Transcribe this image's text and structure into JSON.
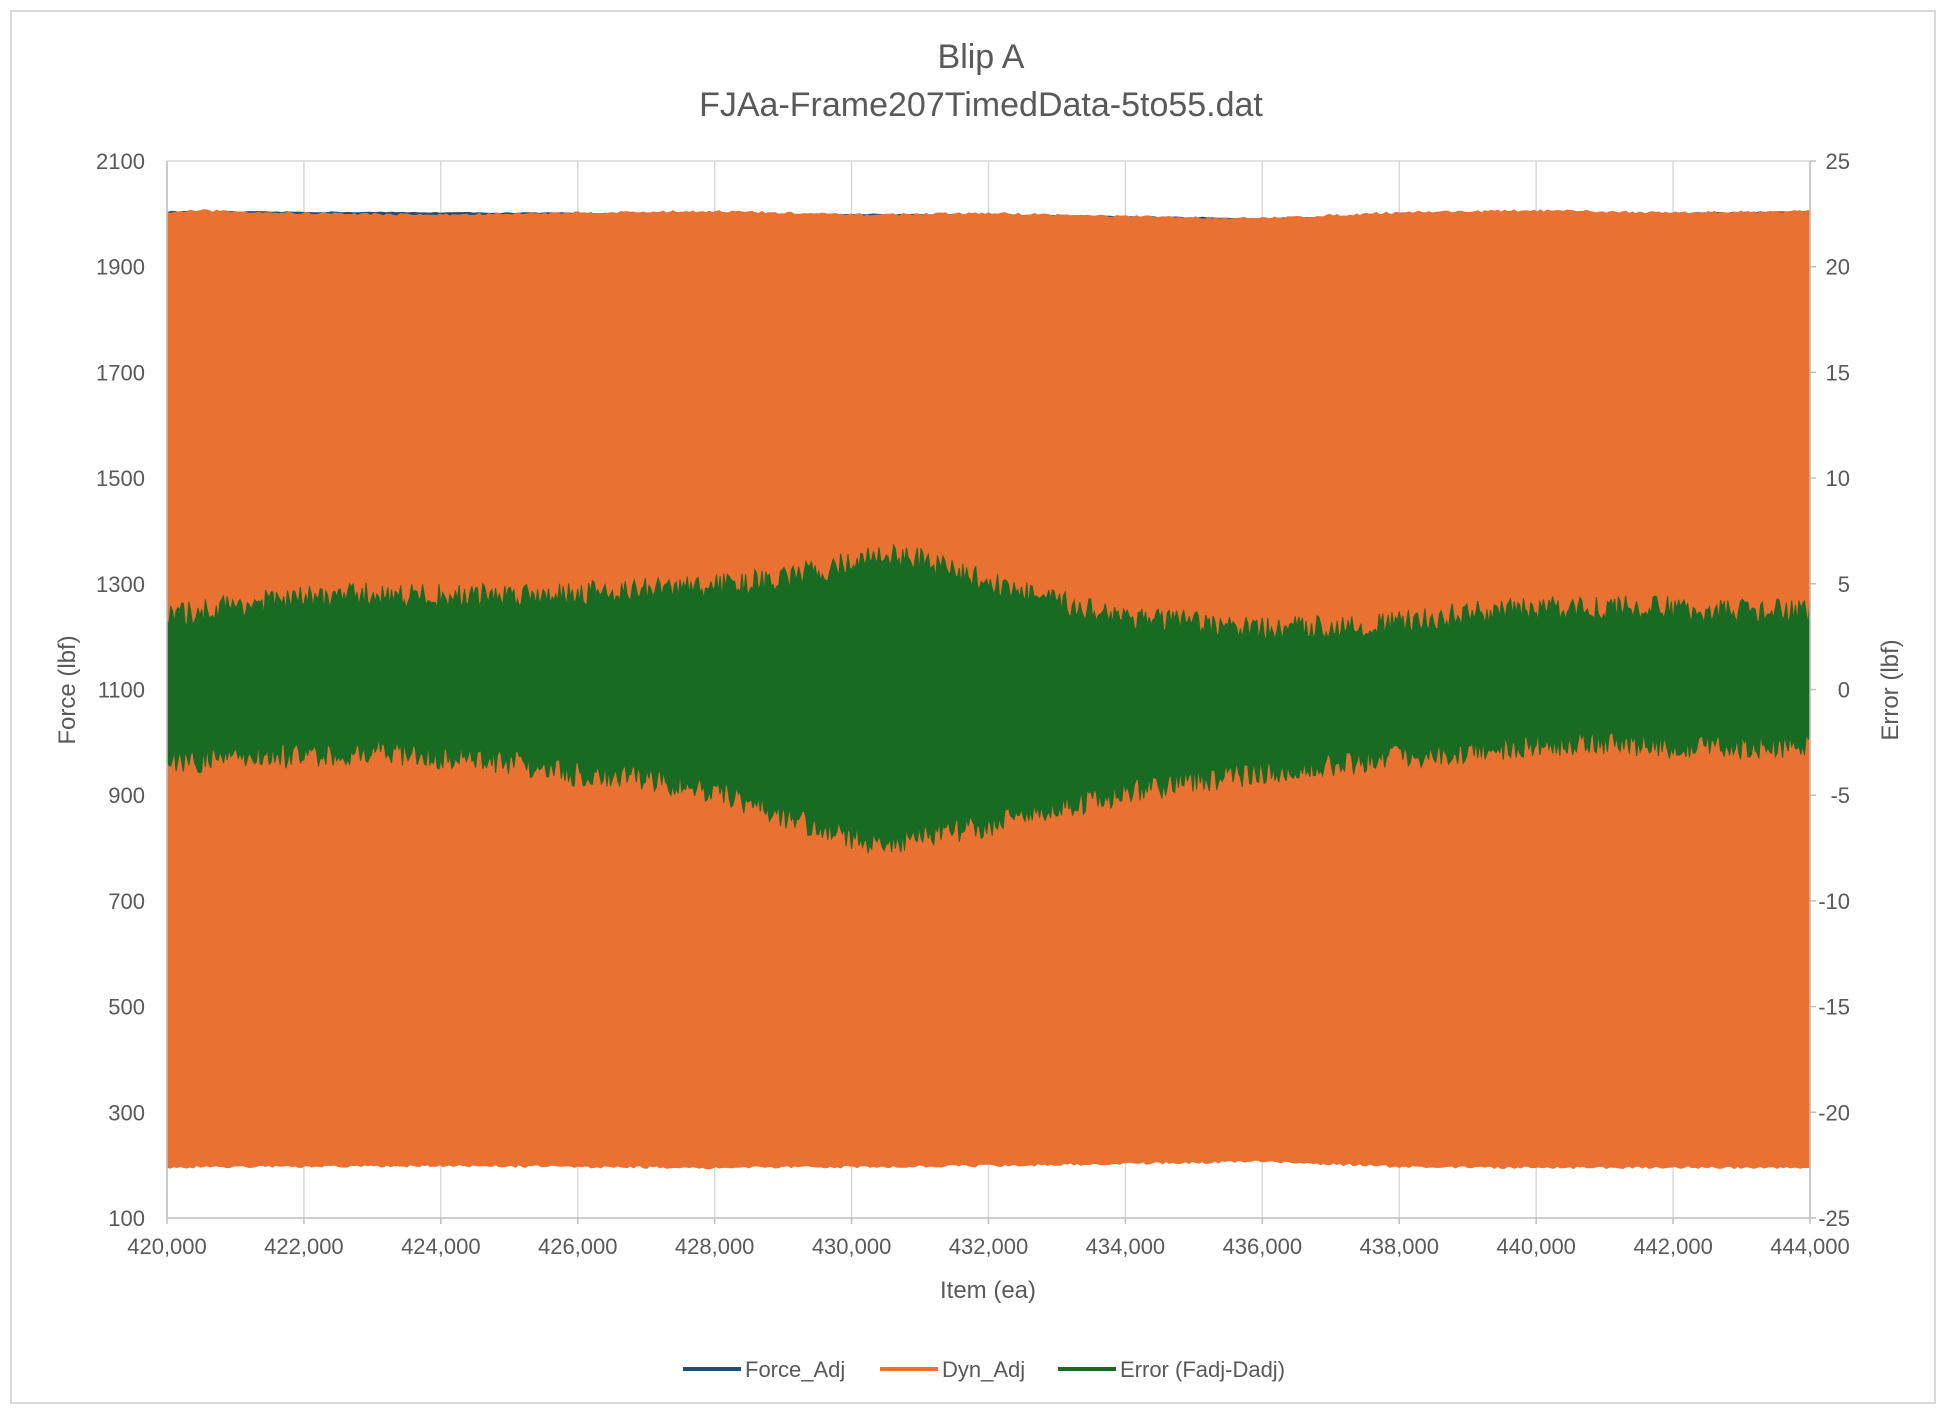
{
  "chart_data": {
    "type": "line",
    "title": "Blip A",
    "subtitle": "FJAa-Frame207TimedData-5to55.dat",
    "xlabel": "Item (ea)",
    "ylabel": "Force (lbf)",
    "y2label": "Error (lbf)",
    "xlim": [
      420000,
      444000
    ],
    "ylim": [
      100,
      2100
    ],
    "y2lim": [
      -25,
      25
    ],
    "x_ticks": [
      "420,000",
      "422,000",
      "424,000",
      "426,000",
      "428,000",
      "430,000",
      "432,000",
      "434,000",
      "436,000",
      "438,000",
      "440,000",
      "442,000",
      "444,000"
    ],
    "y_ticks": [
      "2100",
      "1900",
      "1700",
      "1500",
      "1300",
      "1100",
      "900",
      "700",
      "500",
      "300",
      "100"
    ],
    "y2_ticks": [
      "25",
      "20",
      "15",
      "10",
      "5",
      "0",
      "-5",
      "-10",
      "-15",
      "-20",
      "-25"
    ],
    "grid": "vertical",
    "legend_position": "bottom",
    "series": [
      {
        "name": "Force_Adj",
        "axis": "left",
        "color": "#1f4e79",
        "x": [
          420000,
          432000,
          436000,
          444000
        ],
        "upper": [
          2003,
          1997,
          1990,
          2003
        ],
        "lower": [
          200,
          205,
          212,
          202
        ]
      },
      {
        "name": "Dyn_Adj",
        "axis": "left",
        "color": "#e97132",
        "x": [
          420000,
          420500,
          422000,
          424000,
          426000,
          428000,
          430000,
          432000,
          434000,
          436000,
          438000,
          440000,
          442000,
          444000
        ],
        "upper": [
          2000,
          2003,
          1998,
          1995,
          1999,
          2002,
          1995,
          1998,
          1992,
          1988,
          2000,
          2003,
          1999,
          2002
        ],
        "lower": [
          198,
          200,
          200,
          202,
          200,
          198,
          200,
          202,
          206,
          210,
          200,
          198,
          199,
          198
        ]
      },
      {
        "name": "Error (Fadj-Dadj)",
        "axis": "right",
        "color": "#196b24",
        "x": [
          420000,
          421000,
          422000,
          423000,
          424000,
          425000,
          426000,
          427000,
          428000,
          429000,
          430000,
          430500,
          431000,
          432000,
          433000,
          434000,
          435000,
          436000,
          437000,
          438000,
          439000,
          440000,
          441000,
          442000,
          443000,
          444000
        ],
        "upper": [
          2.8,
          3.4,
          3.7,
          3.9,
          3.8,
          3.9,
          4.0,
          4.1,
          4.3,
          4.6,
          5.4,
          5.8,
          5.5,
          4.5,
          3.5,
          2.9,
          2.5,
          2.2,
          2.4,
          2.5,
          3.0,
          3.2,
          3.3,
          3.2,
          3.1,
          3.1
        ],
        "lower": [
          -2.9,
          -2.6,
          -2.5,
          -2.3,
          -2.6,
          -2.8,
          -3.4,
          -3.6,
          -4.2,
          -5.4,
          -6.4,
          -6.7,
          -6.3,
          -5.8,
          -5.0,
          -4.3,
          -3.7,
          -3.3,
          -3.0,
          -2.6,
          -2.3,
          -2.0,
          -1.9,
          -2.1,
          -2.1,
          -2.1
        ]
      }
    ]
  }
}
